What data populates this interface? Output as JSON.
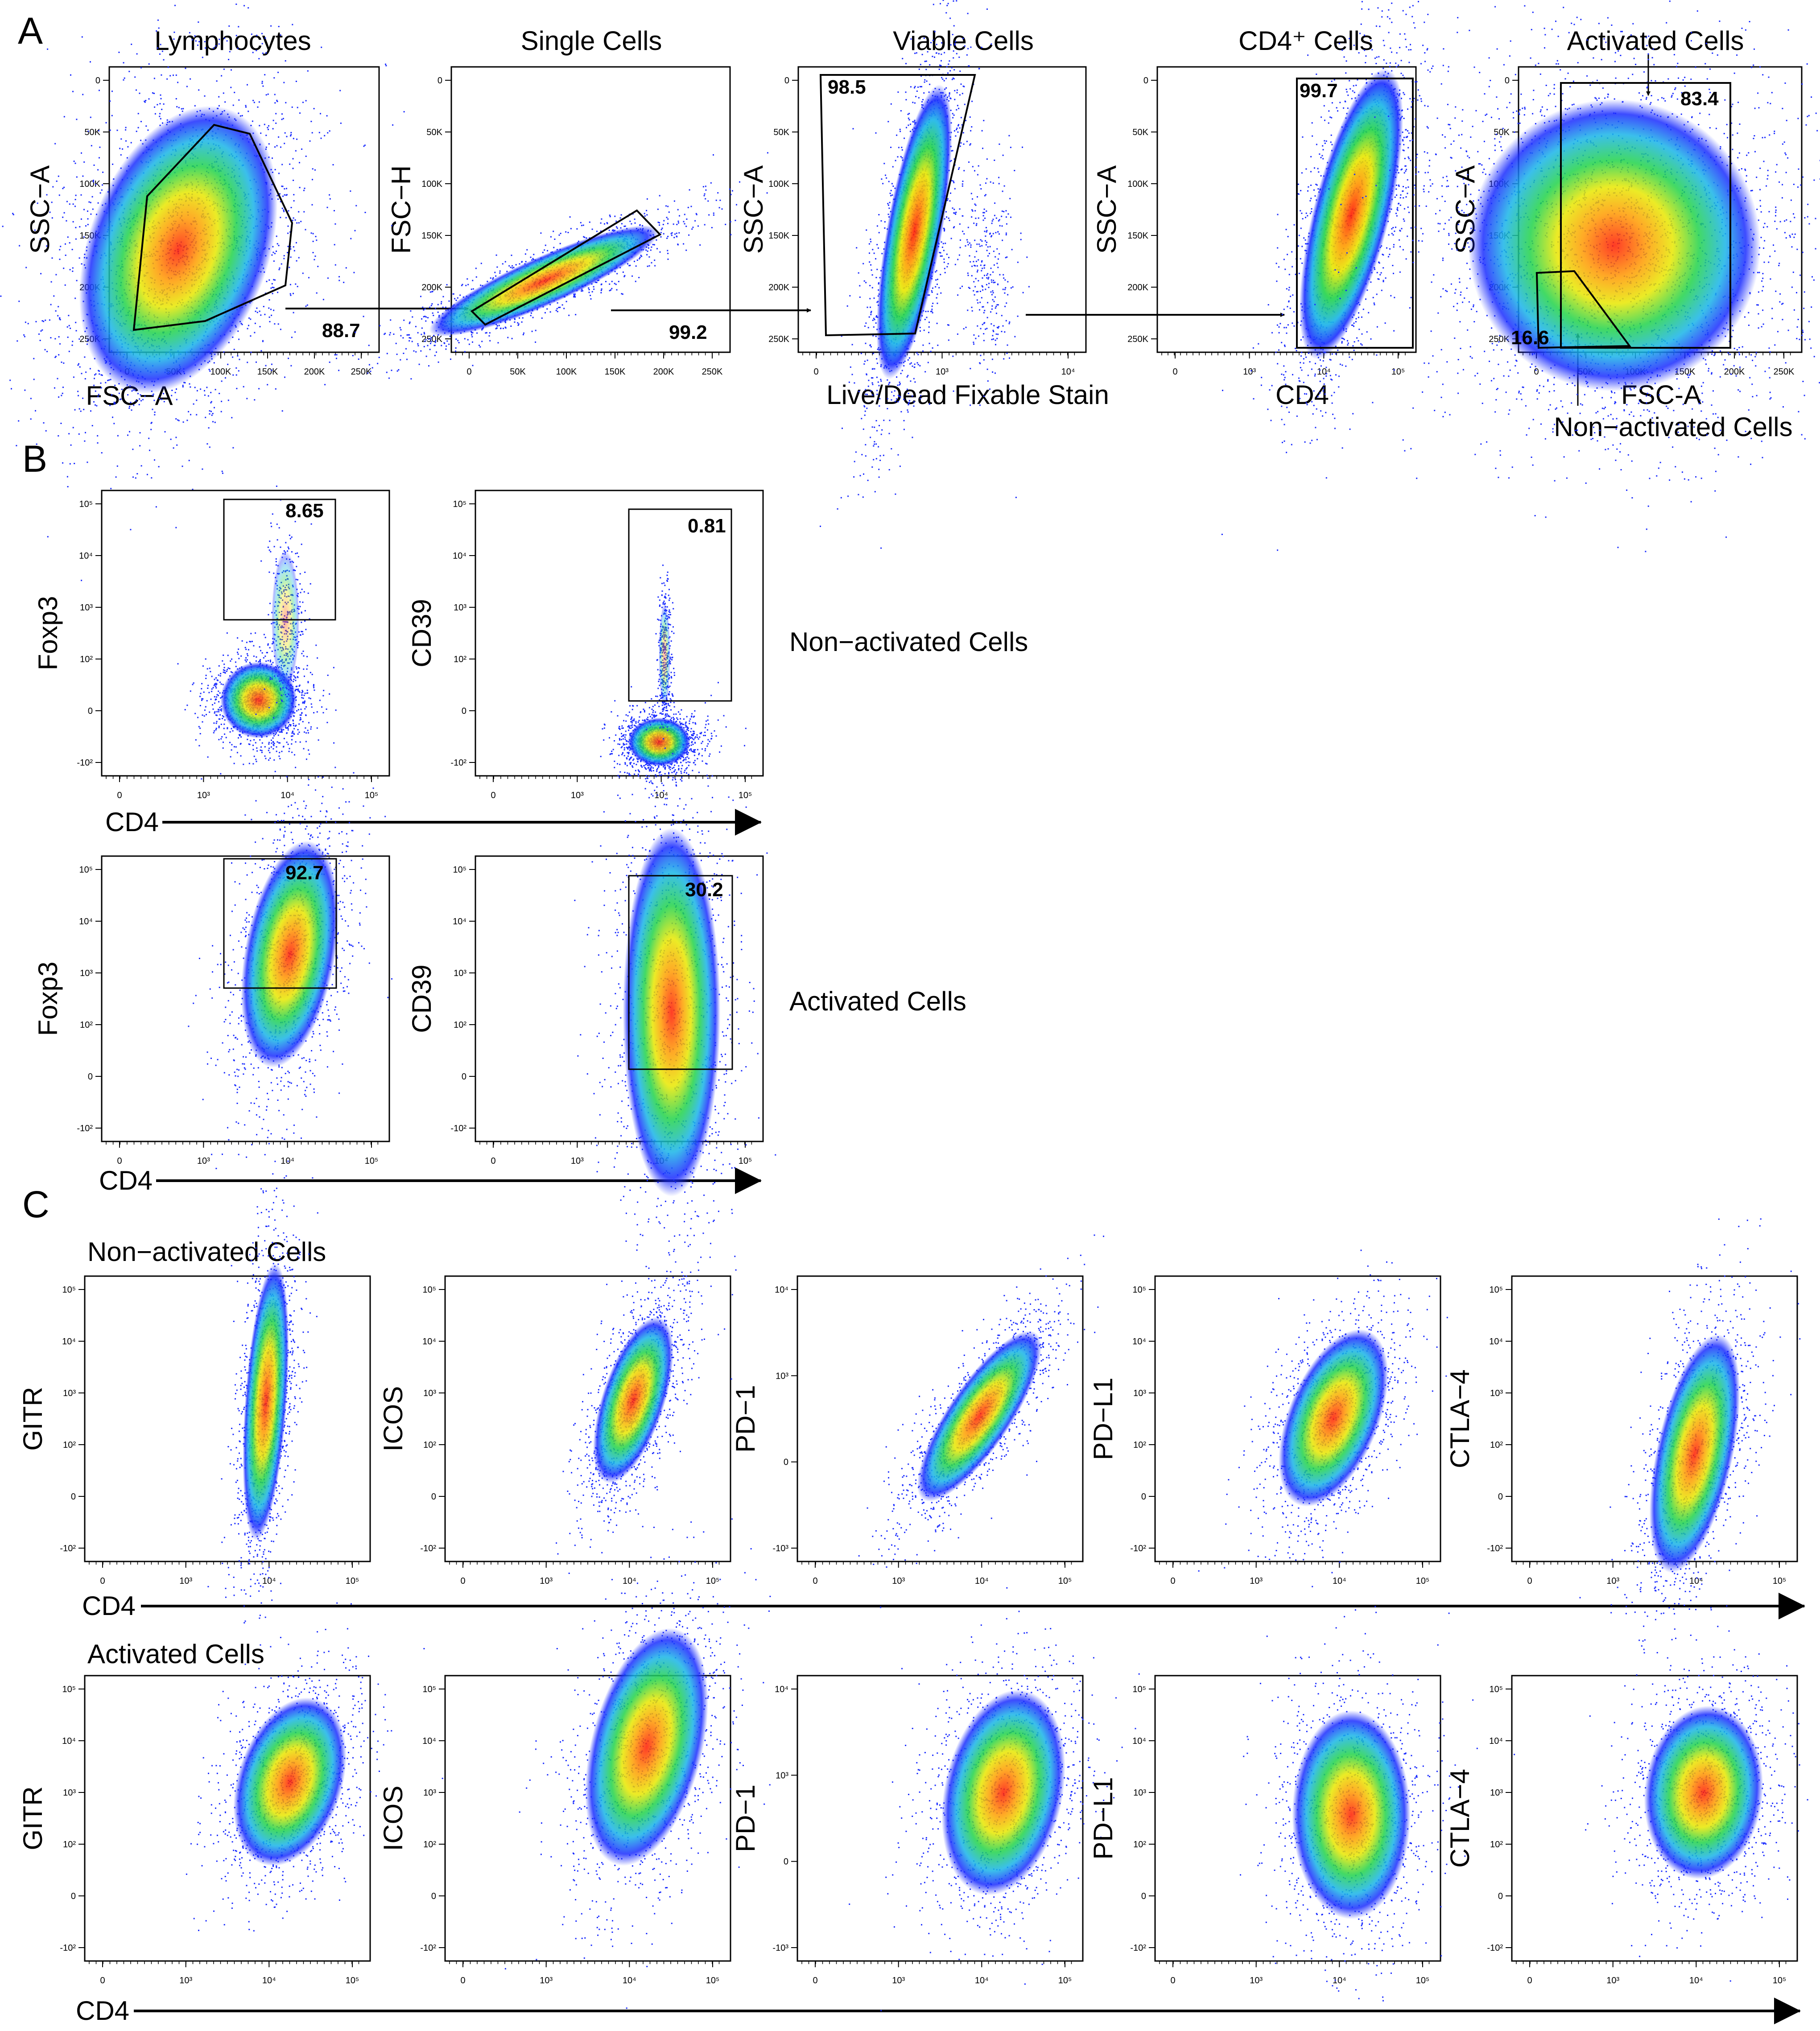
{
  "figure": {
    "sections": {
      "A": {
        "letter": "A"
      },
      "B": {
        "letter": "B"
      },
      "C": {
        "letter": "C"
      }
    },
    "row_a": {
      "plots": [
        {
          "title": "Lymphocytes",
          "xlabel": "FSC−A",
          "ylabel": "SSC−A",
          "gate_value": "88.7",
          "x_ticks": [
            "0",
            "50K",
            "100K",
            "150K",
            "200K",
            "250K"
          ],
          "y_ticks": [
            "0",
            "50K",
            "100K",
            "150K",
            "200K",
            "250K"
          ]
        },
        {
          "title": "Single Cells",
          "xlabel": "",
          "ylabel": "FSC−H",
          "gate_value": "99.2",
          "x_ticks": [
            "0",
            "50K",
            "100K",
            "150K",
            "200K",
            "250K"
          ],
          "y_ticks": [
            "0",
            "50K",
            "100K",
            "150K",
            "200K",
            "250K"
          ]
        },
        {
          "title": "Viable Cells",
          "xlabel": "Live/Dead Fixable Stain",
          "ylabel": "SSC−A",
          "gate_value": "98.5",
          "x_ticks": [
            "0",
            "10³",
            "10⁴"
          ],
          "y_ticks": [
            "0",
            "50K",
            "100K",
            "150K",
            "200K",
            "250K"
          ]
        },
        {
          "title": "CD4⁺ Cells",
          "xlabel": "CD4",
          "ylabel": "SSC−A",
          "gate_value": "99.7",
          "x_ticks": [
            "0",
            "10³",
            "10⁴",
            "10⁵"
          ],
          "y_ticks": [
            "0",
            "50K",
            "100K",
            "150K",
            "200K",
            "250K"
          ]
        },
        {
          "title": "Activated Cells",
          "xlabel": "FSC-A",
          "ylabel": "SSC−A",
          "gate_value": "83.4",
          "gate_value_2": "16.6",
          "x_ticks": [
            "0",
            "50K",
            "100K",
            "150K",
            "200K",
            "250K"
          ],
          "y_ticks": [
            "0",
            "50K",
            "100K",
            "150K",
            "200K",
            "250K"
          ]
        }
      ],
      "non_activated_label": "Non−activated Cells"
    },
    "row_b": {
      "plots": [
        {
          "ylabel": "Foxp3",
          "gate_value": "8.65"
        },
        {
          "ylabel": "CD39",
          "gate_value": "0.81"
        },
        {
          "ylabel": "Foxp3",
          "gate_value": "92.7"
        },
        {
          "ylabel": "CD39",
          "gate_value": "30.2"
        }
      ],
      "row_labels": [
        "Non−activated Cells",
        "Activated Cells"
      ],
      "axis_label": "CD4",
      "x_ticks": [
        "0",
        "10³",
        "10⁴",
        "10⁵"
      ],
      "y_ticks": [
        "10⁵",
        "10⁴",
        "10³",
        "10²",
        "0",
        "-10²"
      ]
    },
    "row_c": {
      "row_titles": [
        "Non−activated Cells",
        "Activated Cells"
      ],
      "markers": [
        "GITR",
        "ICOS",
        "PD−1",
        "PD−L1",
        "CTLA−4"
      ],
      "axis_label": "CD4",
      "x_ticks": [
        "0",
        "10³",
        "10⁴",
        "10⁵"
      ],
      "y_ticks": [
        "10⁵",
        "10⁴",
        "10³",
        "10²",
        "0",
        "-10²"
      ],
      "y_ticks_pd1": [
        "10⁴",
        "10³",
        "0",
        "-10³"
      ]
    }
  }
}
